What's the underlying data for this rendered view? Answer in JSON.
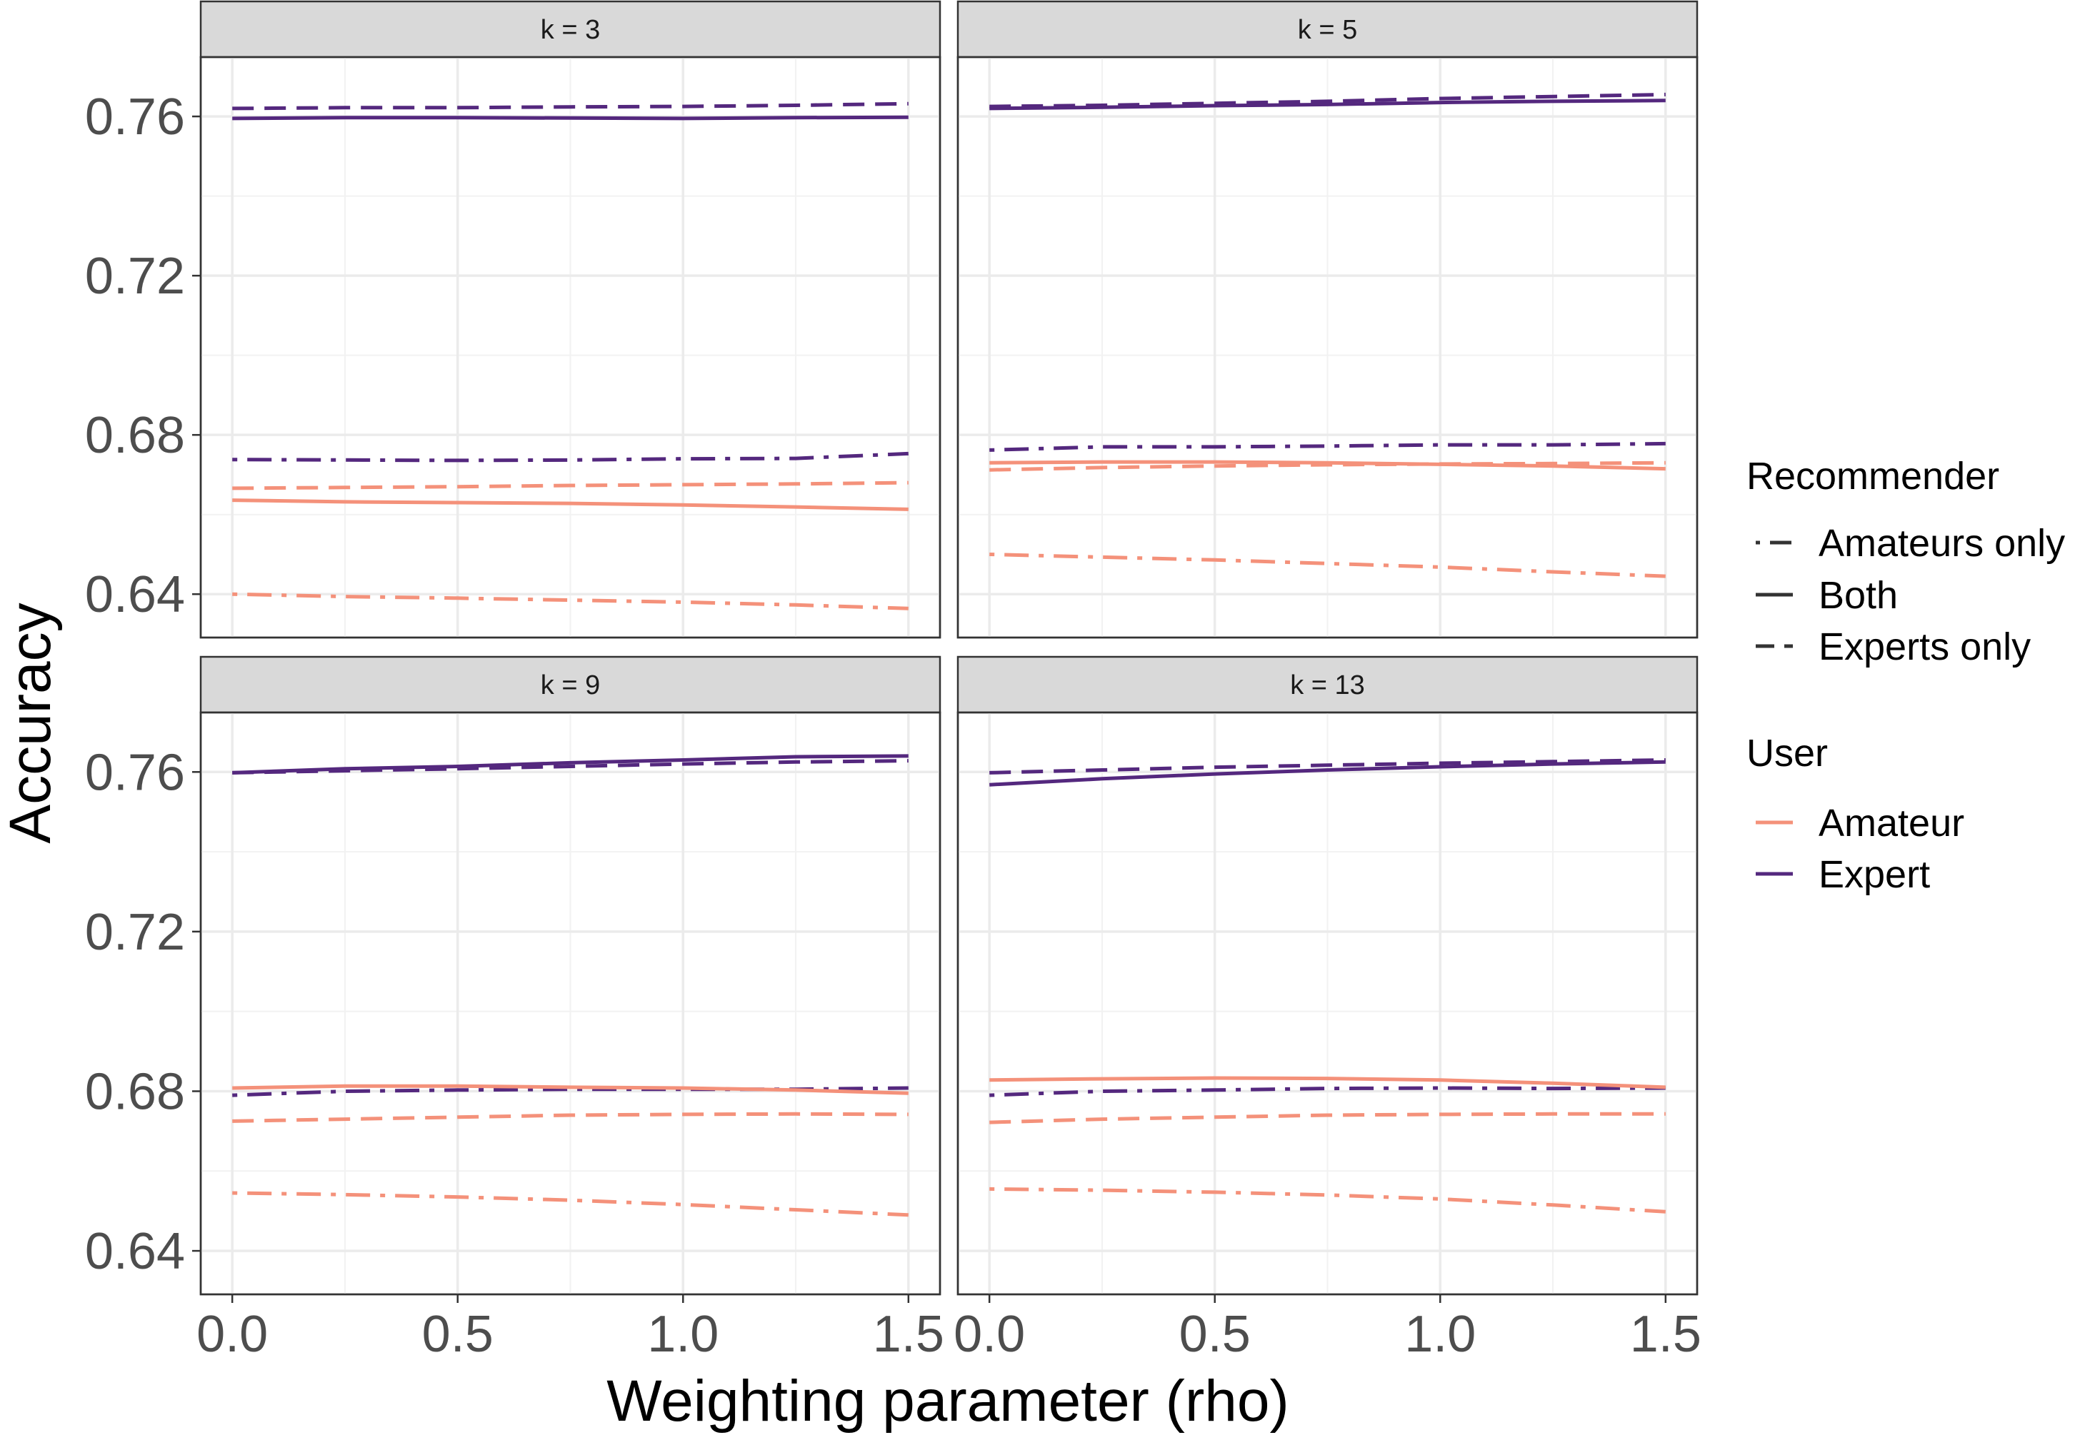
{
  "chart_data": {
    "type": "line",
    "xlabel": "Weighting parameter (rho)",
    "ylabel": "Accuracy",
    "xlim": [
      -0.07,
      1.57
    ],
    "ylim": [
      0.6291,
      0.7749
    ],
    "x_ticks": [
      0.0,
      0.5,
      1.0,
      1.5
    ],
    "x_tick_labels": [
      "0.0",
      "0.5",
      "1.0",
      "1.5"
    ],
    "y_ticks": [
      0.64,
      0.68,
      0.72,
      0.76
    ],
    "y_tick_labels": [
      "0.64",
      "0.68",
      "0.72",
      "0.76"
    ],
    "grid": true,
    "legend_position": "right",
    "colors": {
      "Amateur": "#f4917a",
      "Expert": "#54287e"
    },
    "linetypes": {
      "Amateurs only": "dotdash",
      "Both": "solid",
      "Experts only": "dashed"
    },
    "legends": [
      {
        "title": "Recommender",
        "entries": [
          "Amateurs only",
          "Both",
          "Experts only"
        ]
      },
      {
        "title": "User",
        "entries": [
          "Amateur",
          "Expert"
        ]
      }
    ],
    "x": [
      0.0,
      0.25,
      0.5,
      0.75,
      1.0,
      1.25,
      1.5
    ],
    "panels": [
      {
        "strip": "k = 3",
        "series": [
          {
            "user": "Expert",
            "recommender": "Experts only",
            "values": [
              0.762,
              0.7622,
              0.7622,
              0.7624,
              0.7625,
              0.7628,
              0.7632
            ]
          },
          {
            "user": "Expert",
            "recommender": "Both",
            "values": [
              0.7595,
              0.7597,
              0.7597,
              0.7596,
              0.7595,
              0.7597,
              0.7598
            ]
          },
          {
            "user": "Expert",
            "recommender": "Amateurs only",
            "values": [
              0.6738,
              0.6737,
              0.6736,
              0.6737,
              0.674,
              0.6741,
              0.6753
            ]
          },
          {
            "user": "Amateur",
            "recommender": "Experts only",
            "values": [
              0.6666,
              0.6668,
              0.667,
              0.6673,
              0.6675,
              0.6677,
              0.668
            ]
          },
          {
            "user": "Amateur",
            "recommender": "Both",
            "values": [
              0.6636,
              0.6632,
              0.663,
              0.6628,
              0.6624,
              0.6619,
              0.6613
            ]
          },
          {
            "user": "Amateur",
            "recommender": "Amateurs only",
            "values": [
              0.64,
              0.6394,
              0.639,
              0.6385,
              0.638,
              0.6373,
              0.6364
            ]
          }
        ]
      },
      {
        "strip": "k = 5",
        "series": [
          {
            "user": "Expert",
            "recommender": "Experts only",
            "values": [
              0.7625,
              0.7628,
              0.7633,
              0.7638,
              0.7645,
              0.765,
              0.7655
            ]
          },
          {
            "user": "Expert",
            "recommender": "Both",
            "values": [
              0.762,
              0.7623,
              0.7627,
              0.763,
              0.7635,
              0.7638,
              0.764
            ]
          },
          {
            "user": "Expert",
            "recommender": "Amateurs only",
            "values": [
              0.6762,
              0.677,
              0.677,
              0.6772,
              0.6775,
              0.6775,
              0.6778
            ]
          },
          {
            "user": "Amateur",
            "recommender": "Experts only",
            "values": [
              0.6712,
              0.6718,
              0.6722,
              0.6725,
              0.6727,
              0.6728,
              0.673
            ]
          },
          {
            "user": "Amateur",
            "recommender": "Both",
            "values": [
              0.673,
              0.6732,
              0.6732,
              0.673,
              0.6726,
              0.6722,
              0.6715
            ]
          },
          {
            "user": "Amateur",
            "recommender": "Amateurs only",
            "values": [
              0.65,
              0.6493,
              0.6486,
              0.6477,
              0.6468,
              0.6456,
              0.6445
            ]
          }
        ]
      },
      {
        "strip": "k = 9",
        "series": [
          {
            "user": "Expert",
            "recommender": "Experts only",
            "values": [
              0.7598,
              0.7603,
              0.7608,
              0.7614,
              0.762,
              0.7625,
              0.7628
            ]
          },
          {
            "user": "Expert",
            "recommender": "Both",
            "values": [
              0.7598,
              0.7608,
              0.7614,
              0.7623,
              0.763,
              0.7638,
              0.764
            ]
          },
          {
            "user": "Expert",
            "recommender": "Amateurs only",
            "values": [
              0.679,
              0.68,
              0.6803,
              0.6805,
              0.6805,
              0.6805,
              0.6808
            ]
          },
          {
            "user": "Amateur",
            "recommender": "Experts only",
            "values": [
              0.6725,
              0.673,
              0.6735,
              0.674,
              0.6742,
              0.6743,
              0.6742
            ]
          },
          {
            "user": "Amateur",
            "recommender": "Both",
            "values": [
              0.6808,
              0.6813,
              0.6813,
              0.681,
              0.6808,
              0.6803,
              0.6795
            ]
          },
          {
            "user": "Amateur",
            "recommender": "Amateurs only",
            "values": [
              0.6545,
              0.6541,
              0.6535,
              0.6527,
              0.6516,
              0.6503,
              0.649
            ]
          }
        ]
      },
      {
        "strip": "k = 13",
        "series": [
          {
            "user": "Expert",
            "recommender": "Experts only",
            "values": [
              0.7598,
              0.7605,
              0.7612,
              0.7617,
              0.7622,
              0.7626,
              0.763
            ]
          },
          {
            "user": "Expert",
            "recommender": "Both",
            "values": [
              0.7568,
              0.7583,
              0.7595,
              0.7605,
              0.7613,
              0.762,
              0.7625
            ]
          },
          {
            "user": "Expert",
            "recommender": "Amateurs only",
            "values": [
              0.679,
              0.68,
              0.6803,
              0.6807,
              0.6808,
              0.6807,
              0.6808
            ]
          },
          {
            "user": "Amateur",
            "recommender": "Experts only",
            "values": [
              0.6722,
              0.673,
              0.6735,
              0.674,
              0.6742,
              0.6743,
              0.6743
            ]
          },
          {
            "user": "Amateur",
            "recommender": "Both",
            "values": [
              0.6828,
              0.6831,
              0.6833,
              0.6832,
              0.6828,
              0.682,
              0.681
            ]
          },
          {
            "user": "Amateur",
            "recommender": "Amateurs only",
            "values": [
              0.6555,
              0.6552,
              0.6547,
              0.654,
              0.653,
              0.6515,
              0.6498
            ]
          }
        ]
      }
    ]
  }
}
